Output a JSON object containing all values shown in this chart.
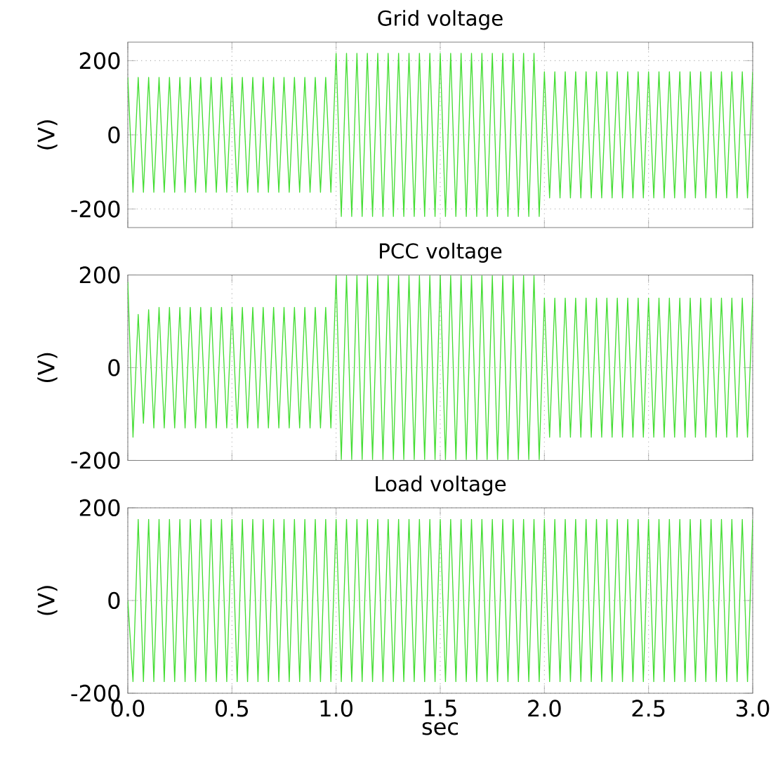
{
  "chart_data": [
    {
      "type": "line",
      "title": "Grid voltage",
      "ylabel": "(V)",
      "xlim": [
        0,
        3
      ],
      "ylim": [
        -250,
        250
      ],
      "yticks": [
        -200,
        0,
        200
      ],
      "xticks": [
        0,
        0.5,
        1,
        1.5,
        2,
        2.5,
        3
      ],
      "grid": true,
      "tick_labels": "y",
      "x": [
        0,
        0.025,
        0.05,
        0.075,
        0.1,
        0.125,
        0.15,
        0.175,
        0.2,
        0.225,
        0.25,
        0.275,
        0.3,
        0.325,
        0.35,
        0.375,
        0.4,
        0.425,
        0.45,
        0.475,
        0.5,
        0.525,
        0.55,
        0.575,
        0.6,
        0.625,
        0.65,
        0.675,
        0.7,
        0.725,
        0.75,
        0.775,
        0.8,
        0.825,
        0.85,
        0.875,
        0.9,
        0.925,
        0.95,
        0.975,
        1,
        1.025,
        1.05,
        1.075,
        1.1,
        1.125,
        1.15,
        1.175,
        1.2,
        1.225,
        1.25,
        1.275,
        1.3,
        1.325,
        1.35,
        1.375,
        1.4,
        1.425,
        1.45,
        1.475,
        1.5,
        1.525,
        1.55,
        1.575,
        1.6,
        1.625,
        1.65,
        1.675,
        1.7,
        1.725,
        1.75,
        1.775,
        1.8,
        1.825,
        1.85,
        1.875,
        1.9,
        1.925,
        1.95,
        1.975,
        2,
        2.025,
        2.05,
        2.075,
        2.1,
        2.125,
        2.15,
        2.175,
        2.2,
        2.225,
        2.25,
        2.275,
        2.3,
        2.325,
        2.35,
        2.375,
        2.4,
        2.425,
        2.45,
        2.475,
        2.5,
        2.525,
        2.55,
        2.575,
        2.6,
        2.625,
        2.65,
        2.675,
        2.7,
        2.725,
        2.75,
        2.775,
        2.8,
        2.825,
        2.85,
        2.875,
        2.9,
        2.925,
        2.95,
        2.975,
        3
      ],
      "series": [
        {
          "color": "#44dd33",
          "values": [
            155,
            -155,
            155,
            -155,
            155,
            -155,
            155,
            -155,
            155,
            -155,
            155,
            -155,
            155,
            -155,
            155,
            -155,
            155,
            -155,
            155,
            -155,
            155,
            -155,
            155,
            -155,
            155,
            -155,
            155,
            -155,
            155,
            -155,
            155,
            -155,
            155,
            -155,
            155,
            -155,
            155,
            -155,
            155,
            -155,
            220,
            -220,
            220,
            -220,
            220,
            -220,
            220,
            -220,
            220,
            -220,
            220,
            -220,
            220,
            -220,
            220,
            -220,
            220,
            -220,
            220,
            -220,
            220,
            -220,
            220,
            -220,
            220,
            -220,
            220,
            -220,
            220,
            -220,
            220,
            -220,
            220,
            -220,
            220,
            -220,
            220,
            -220,
            220,
            -220,
            170,
            -170,
            170,
            -170,
            170,
            -170,
            170,
            -170,
            170,
            -170,
            170,
            -170,
            170,
            -170,
            170,
            -170,
            170,
            -170,
            170,
            -170,
            170,
            -170,
            170,
            -170,
            170,
            -170,
            170,
            -170,
            170,
            -170,
            170,
            -170,
            170,
            -170,
            170,
            -170,
            170,
            -170,
            170,
            -170,
            170
          ]
        }
      ]
    },
    {
      "type": "line",
      "title": "PCC voltage",
      "ylabel": "(V)",
      "xlim": [
        0,
        3
      ],
      "ylim": [
        -200,
        200
      ],
      "yticks": [
        -200,
        0,
        200
      ],
      "xticks": [
        0,
        0.5,
        1,
        1.5,
        2,
        2.5,
        3
      ],
      "grid": true,
      "tick_labels": "y",
      "x": [
        0,
        0.025,
        0.05,
        0.075,
        0.1,
        0.125,
        0.15,
        0.175,
        0.2,
        0.225,
        0.25,
        0.275,
        0.3,
        0.325,
        0.35,
        0.375,
        0.4,
        0.425,
        0.45,
        0.475,
        0.5,
        0.525,
        0.55,
        0.575,
        0.6,
        0.625,
        0.65,
        0.675,
        0.7,
        0.725,
        0.75,
        0.775,
        0.8,
        0.825,
        0.85,
        0.875,
        0.9,
        0.925,
        0.95,
        0.975,
        1,
        1.025,
        1.05,
        1.075,
        1.1,
        1.125,
        1.15,
        1.175,
        1.2,
        1.225,
        1.25,
        1.275,
        1.3,
        1.325,
        1.35,
        1.375,
        1.4,
        1.425,
        1.45,
        1.475,
        1.5,
        1.525,
        1.55,
        1.575,
        1.6,
        1.625,
        1.65,
        1.675,
        1.7,
        1.725,
        1.75,
        1.775,
        1.8,
        1.825,
        1.85,
        1.875,
        1.9,
        1.925,
        1.95,
        1.975,
        2,
        2.025,
        2.05,
        2.075,
        2.1,
        2.125,
        2.15,
        2.175,
        2.2,
        2.225,
        2.25,
        2.275,
        2.3,
        2.325,
        2.35,
        2.375,
        2.4,
        2.425,
        2.45,
        2.475,
        2.5,
        2.525,
        2.55,
        2.575,
        2.6,
        2.625,
        2.65,
        2.675,
        2.7,
        2.725,
        2.75,
        2.775,
        2.8,
        2.825,
        2.85,
        2.875,
        2.9,
        2.925,
        2.95,
        2.975,
        3
      ],
      "series": [
        {
          "color": "#44dd33",
          "values": [
            185,
            -150,
            115,
            -120,
            125,
            -130,
            130,
            -130,
            130,
            -130,
            130,
            -130,
            130,
            -130,
            130,
            -130,
            130,
            -130,
            130,
            -130,
            130,
            -130,
            130,
            -130,
            130,
            -130,
            130,
            -130,
            130,
            -130,
            130,
            -130,
            130,
            -130,
            130,
            -130,
            130,
            -130,
            130,
            -130,
            198,
            -198,
            198,
            -198,
            198,
            -198,
            198,
            -198,
            198,
            -198,
            198,
            -198,
            198,
            -198,
            198,
            -198,
            198,
            -198,
            198,
            -198,
            198,
            -198,
            198,
            -198,
            198,
            -198,
            198,
            -198,
            198,
            -198,
            198,
            -198,
            198,
            -198,
            198,
            -198,
            198,
            -198,
            198,
            -198,
            150,
            -150,
            150,
            -150,
            150,
            -150,
            150,
            -150,
            150,
            -150,
            150,
            -150,
            150,
            -150,
            150,
            -150,
            150,
            -150,
            150,
            -150,
            150,
            -150,
            150,
            -150,
            150,
            -150,
            150,
            -150,
            150,
            -150,
            150,
            -150,
            150,
            -150,
            150,
            -150,
            150,
            -150,
            150,
            -150,
            150
          ]
        }
      ]
    },
    {
      "type": "line",
      "title": "Load voltage",
      "ylabel": "(V)",
      "xlabel": "sec",
      "xlim": [
        0,
        3
      ],
      "ylim": [
        -200,
        200
      ],
      "yticks": [
        -200,
        0,
        200
      ],
      "xticks": [
        {
          "value": 0,
          "label": "0.0"
        },
        0.5,
        {
          "value": 1,
          "label": "1.0"
        },
        1.5,
        {
          "value": 2,
          "label": "2.0"
        },
        2.5,
        {
          "value": 3,
          "label": "3.0"
        }
      ],
      "grid": true,
      "x": [
        0,
        0.025,
        0.05,
        0.075,
        0.1,
        0.125,
        0.15,
        0.175,
        0.2,
        0.225,
        0.25,
        0.275,
        0.3,
        0.325,
        0.35,
        0.375,
        0.4,
        0.425,
        0.45,
        0.475,
        0.5,
        0.525,
        0.55,
        0.575,
        0.6,
        0.625,
        0.65,
        0.675,
        0.7,
        0.725,
        0.75,
        0.775,
        0.8,
        0.825,
        0.85,
        0.875,
        0.9,
        0.925,
        0.95,
        0.975,
        1,
        1.025,
        1.05,
        1.075,
        1.1,
        1.125,
        1.15,
        1.175,
        1.2,
        1.225,
        1.25,
        1.275,
        1.3,
        1.325,
        1.35,
        1.375,
        1.4,
        1.425,
        1.45,
        1.475,
        1.5,
        1.525,
        1.55,
        1.575,
        1.6,
        1.625,
        1.65,
        1.675,
        1.7,
        1.725,
        1.75,
        1.775,
        1.8,
        1.825,
        1.85,
        1.875,
        1.9,
        1.925,
        1.95,
        1.975,
        2,
        2.025,
        2.05,
        2.075,
        2.1,
        2.125,
        2.15,
        2.175,
        2.2,
        2.225,
        2.25,
        2.275,
        2.3,
        2.325,
        2.35,
        2.375,
        2.4,
        2.425,
        2.45,
        2.475,
        2.5,
        2.525,
        2.55,
        2.575,
        2.6,
        2.625,
        2.65,
        2.675,
        2.7,
        2.725,
        2.75,
        2.775,
        2.8,
        2.825,
        2.85,
        2.875,
        2.9,
        2.925,
        2.95,
        2.975,
        3
      ],
      "series": [
        {
          "color": "#44dd33",
          "values": [
            0,
            -175,
            175,
            -175,
            175,
            -175,
            175,
            -175,
            175,
            -175,
            175,
            -175,
            175,
            -175,
            175,
            -175,
            175,
            -175,
            175,
            -175,
            175,
            -175,
            175,
            -175,
            175,
            -175,
            175,
            -175,
            175,
            -175,
            175,
            -175,
            175,
            -175,
            175,
            -175,
            175,
            -175,
            175,
            -175,
            175,
            -175,
            175,
            -175,
            175,
            -175,
            175,
            -175,
            175,
            -175,
            175,
            -175,
            175,
            -175,
            175,
            -175,
            175,
            -175,
            175,
            -175,
            175,
            -175,
            175,
            -175,
            175,
            -175,
            175,
            -175,
            175,
            -175,
            175,
            -175,
            175,
            -175,
            175,
            -175,
            175,
            -175,
            175,
            -175,
            175,
            -175,
            175,
            -175,
            175,
            -175,
            175,
            -175,
            175,
            -175,
            175,
            -175,
            175,
            -175,
            175,
            -175,
            175,
            -175,
            175,
            -175,
            175,
            -175,
            175,
            -175,
            175,
            -175,
            175,
            -175,
            175,
            -175,
            175,
            -175,
            175,
            -175,
            175,
            -175,
            175,
            -175,
            175,
            -175,
            175
          ]
        }
      ]
    }
  ]
}
